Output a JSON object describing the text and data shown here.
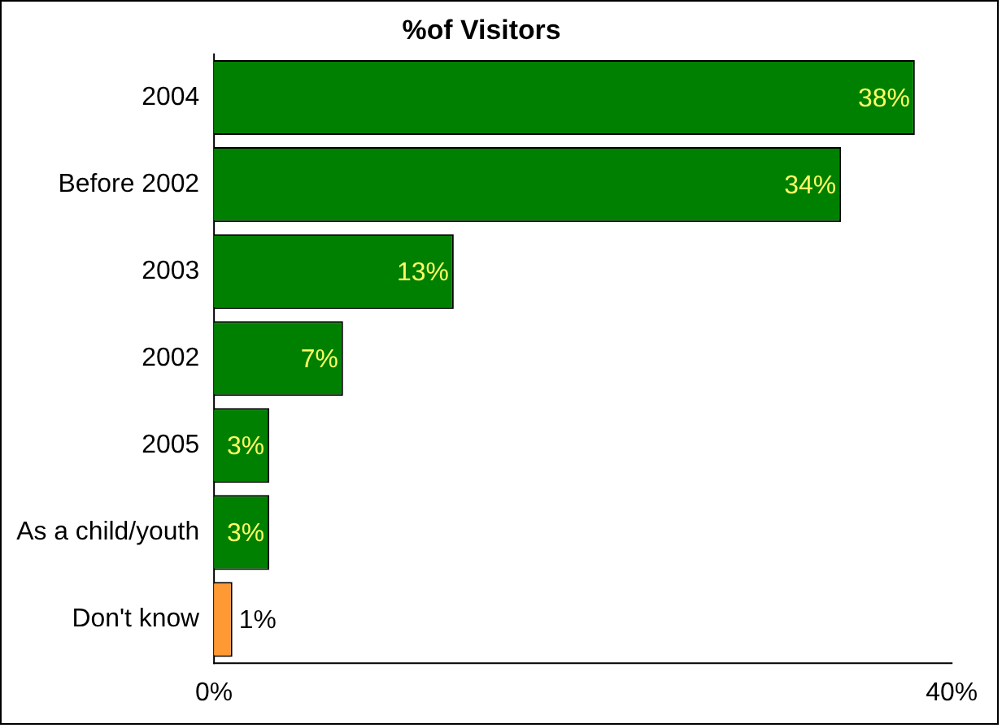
{
  "chart_data": {
    "type": "bar",
    "orientation": "horizontal",
    "title": "%of Visitors",
    "categories": [
      "2004",
      "Before 2002",
      "2003",
      "2002",
      "2005",
      "As a child/youth",
      "Don't know"
    ],
    "values": [
      38,
      34,
      13,
      7,
      3,
      3,
      1
    ],
    "colors": [
      "#008000",
      "#008000",
      "#008000",
      "#008000",
      "#008000",
      "#008000",
      "#ff9933"
    ],
    "xlim": [
      0,
      40
    ],
    "xticks": [
      {
        "value": 0,
        "label": "0%"
      },
      {
        "value": 40,
        "label": "40%"
      }
    ],
    "value_labels": [
      "38%",
      "34%",
      "13%",
      "7%",
      "3%",
      "3%",
      "1%"
    ],
    "grid": false,
    "legend": false
  }
}
